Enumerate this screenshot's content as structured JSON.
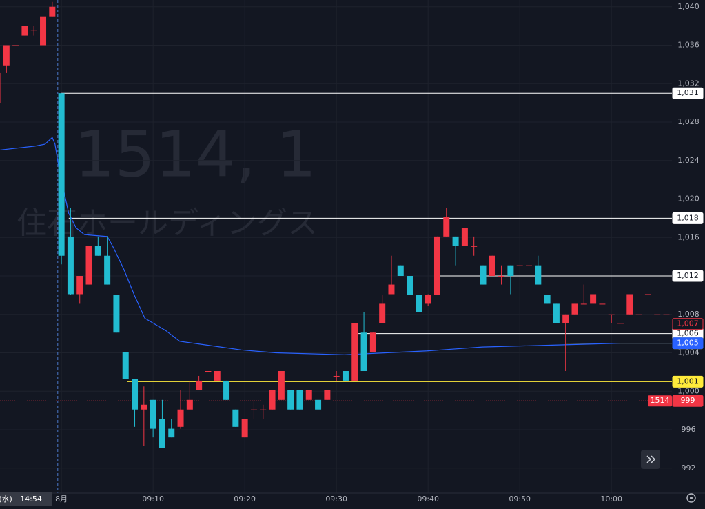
{
  "chart_data": {
    "type": "candlestick",
    "watermark": {
      "symbol_line": "1514, 1",
      "name": "住石ホールディングス"
    },
    "up_color": "#f23645",
    "down_color": "#22bcd1",
    "grid": true,
    "x": [
      -7,
      -6,
      -5,
      -4,
      -3,
      -2,
      -1,
      0,
      1,
      2,
      3,
      4,
      5,
      6,
      7,
      8,
      9,
      10,
      11,
      12,
      13,
      14,
      15,
      16,
      17,
      18,
      19,
      20,
      21,
      22,
      23,
      24,
      25,
      26,
      27,
      28,
      29,
      30,
      31,
      32,
      33,
      34,
      35,
      36,
      37,
      38,
      39,
      40,
      41,
      42,
      43,
      44,
      45,
      46,
      47,
      48,
      49,
      50,
      51,
      52,
      53,
      54,
      55,
      56,
      57,
      58,
      59,
      60,
      61,
      62,
      63,
      64,
      65,
      66
    ],
    "open": [
      1030,
      1033.9,
      1036,
      1037,
      1037.6,
      1036,
      1039,
      1031,
      1016.1,
      1010.1,
      1011.1,
      1015.1,
      1014.1,
      1010,
      1004.1,
      1001.3,
      998.1,
      999.1,
      997.1,
      996.1,
      996.3,
      998.1,
      1000.1,
      1002.1,
      1001.1,
      1001.1,
      998.1,
      995.2,
      998.1,
      998.1,
      998.1,
      999.1,
      1000.1,
      1000.1,
      999.1,
      999.1,
      999.1,
      1001.6,
      1002.1,
      1001.1,
      1006.1,
      1004.1,
      1007.1,
      1010.1,
      1013.1,
      1012,
      1010,
      1009.1,
      1010,
      1016.1,
      1016.1,
      1015.1,
      1015.1,
      1013.1,
      1012,
      1012,
      1013.1,
      1013.1,
      1013.1,
      1013.1,
      1010,
      1009.1,
      1007.1,
      1008,
      1009.1,
      1009.1,
      1009.1,
      1008,
      1007.1,
      1008,
      1008,
      1010.1,
      1008,
      1008
    ],
    "high": [
      1033.1,
      1036,
      1036,
      1038,
      1038,
      1039,
      1040.5,
      1031,
      1019.1,
      1012,
      1015.1,
      1016.1,
      1016.1,
      1010,
      1004.1,
      1001.3,
      1000.5,
      999.1,
      999.1,
      997.1,
      1000.1,
      1001.1,
      1001.6,
      1002.1,
      1002.1,
      1001.1,
      998.1,
      997.1,
      999.1,
      998.6,
      1000.1,
      1002.1,
      1000.1,
      1000.1,
      1000.1,
      999.1,
      1000.1,
      1002.1,
      1002.1,
      1007.1,
      1008.2,
      1006.1,
      1010,
      1014.1,
      1013.1,
      1012,
      1010,
      1010.1,
      1016.1,
      1019.1,
      1016.1,
      1017,
      1016.1,
      1013.1,
      1014.1,
      1013.1,
      1013.1,
      1013.1,
      1013.1,
      1014.1,
      1010,
      1009.1,
      1008,
      1009.1,
      1011.1,
      1010.1,
      1009.1,
      1008,
      1007.1,
      1010.1,
      1008,
      1010.1,
      1008,
      1008
    ],
    "low": [
      1030,
      1033.1,
      1036,
      1037,
      1037,
      1036,
      1039,
      1013.2,
      1010,
      1009.1,
      1011.1,
      1014.1,
      1011.1,
      1006.1,
      1001.3,
      996.3,
      994.3,
      995.2,
      994.1,
      995.2,
      996.1,
      998.1,
      1000.1,
      1002.1,
      1001.1,
      999.1,
      996.3,
      995.2,
      997.1,
      997.1,
      998.1,
      999.1,
      998.1,
      998.1,
      999.1,
      998.1,
      999.1,
      1001.1,
      1001.1,
      1001.1,
      1002.1,
      1004.1,
      1007.1,
      1010.1,
      1012,
      1010,
      1008.2,
      1008.9,
      1010,
      1016.1,
      1013.1,
      1015.1,
      1014.1,
      1011.1,
      1012,
      1011.1,
      1010.1,
      1013.1,
      1013.1,
      1011.1,
      1009.1,
      1007.1,
      1002.1,
      1008,
      1009.1,
      1009.1,
      1009.1,
      1007.1,
      1007.1,
      1008,
      1008,
      1010.1,
      1008,
      1008
    ],
    "close": [
      1033.1,
      1036,
      1036,
      1038,
      1037.6,
      1039,
      1040,
      1014.1,
      1010.1,
      1012,
      1015.1,
      1014.1,
      1011.1,
      1006.1,
      1001.3,
      998.1,
      998.6,
      996.1,
      994.1,
      995.2,
      998.1,
      999.1,
      1001.1,
      1002.1,
      1002.1,
      999.1,
      996.3,
      997.1,
      998.1,
      998.1,
      1000.1,
      1002.1,
      998.1,
      998.1,
      1000.1,
      998.1,
      1000.1,
      1001.6,
      1001.1,
      1007.1,
      1002.1,
      1006.1,
      1009.1,
      1011.1,
      1012,
      1010,
      1008.2,
      1010,
      1016.1,
      1018.1,
      1015.1,
      1017,
      1015.1,
      1011.1,
      1014.1,
      1012,
      1012,
      1013.1,
      1013.1,
      1011.1,
      1009.1,
      1007.1,
      1008,
      1009.1,
      1009.1,
      1010.1,
      1009.1,
      1008,
      1007.1,
      1010.1,
      1008,
      1010.1,
      1008,
      1008
    ],
    "average_line": {
      "color": "#2962ff",
      "x": [
        -6.7,
        -2.9,
        -1.8,
        -1,
        -0.7,
        -0.2,
        0.8,
        1.6,
        2.5,
        5,
        5.7,
        6.8,
        8,
        9.1,
        11.4,
        12.9,
        15.9,
        19.6,
        23.4,
        30.9,
        35.4,
        39.9,
        45.9,
        53.5,
        61,
        66.6
      ],
      "values": [
        1025.1,
        1025.5,
        1025.7,
        1026.4,
        1025.7,
        1022.8,
        1018.5,
        1017,
        1016.3,
        1016.1,
        1014.9,
        1012.7,
        1009.9,
        1007.6,
        1006.3,
        1005.2,
        1004.8,
        1004.3,
        1004,
        1003.8,
        1004,
        1004.2,
        1004.6,
        1004.8,
        1005,
        1005
      ]
    },
    "xlim": [
      -6.7,
      66.6
    ],
    "xticks": [
      {
        "value": 0,
        "label": "8月"
      },
      {
        "value": 10,
        "label": "09:10"
      },
      {
        "value": 20,
        "label": "09:20"
      },
      {
        "value": 30,
        "label": "09:30"
      },
      {
        "value": 40,
        "label": "09:40"
      },
      {
        "value": 50,
        "label": "09:50"
      },
      {
        "value": 60,
        "label": "10:00"
      }
    ],
    "ylim": [
      989.4,
      1040.7
    ],
    "yticks": [
      {
        "value": 1040,
        "label": "1,040"
      },
      {
        "value": 1036,
        "label": "1,036"
      },
      {
        "value": 1032,
        "label": "1,032"
      },
      {
        "value": 1028,
        "label": "1,028"
      },
      {
        "value": 1024,
        "label": "1,024"
      },
      {
        "value": 1020,
        "label": "1,020"
      },
      {
        "value": 1016,
        "label": "1,016"
      },
      {
        "value": 1012,
        "label": "1,012"
      },
      {
        "value": 1008,
        "label": "1,008"
      },
      {
        "value": 1004,
        "label": "1,004"
      },
      {
        "value": 1000,
        "label": "1,000"
      },
      996,
      992
    ],
    "levels": [
      {
        "value": 1031,
        "label": "1,031",
        "color": "#ffffff",
        "x": 0
      },
      {
        "value": 1018,
        "label": "1,018",
        "color": "#ffffff",
        "x": 0.8
      },
      {
        "value": 1012,
        "label": "1,012",
        "color": "#ffffff",
        "x": 41
      },
      {
        "value": 1006,
        "label": "1,006",
        "color": "#ffffff",
        "x": 32.4
      },
      {
        "value": 1005,
        "label": "1,005",
        "color": "#ffeb3b",
        "x": 55
      },
      {
        "value": 1001,
        "label": "1,001",
        "color": "#ffeb3b",
        "x": 7.2
      }
    ],
    "price_tags": [
      {
        "value": 1007,
        "label": "1,007",
        "color": "#f23645",
        "text_color": "#f23645",
        "filled": false
      },
      {
        "value": 1005,
        "label": "1,005",
        "color": "#2962ff",
        "text_color": "#ffffff",
        "filled": true
      }
    ],
    "last_price": {
      "symbol": "1514",
      "value": 999,
      "label": "999",
      "color": "#f23645"
    },
    "crosshair": {
      "x": -0.4,
      "date_label": "(水)",
      "time_label": "14:54"
    }
  }
}
